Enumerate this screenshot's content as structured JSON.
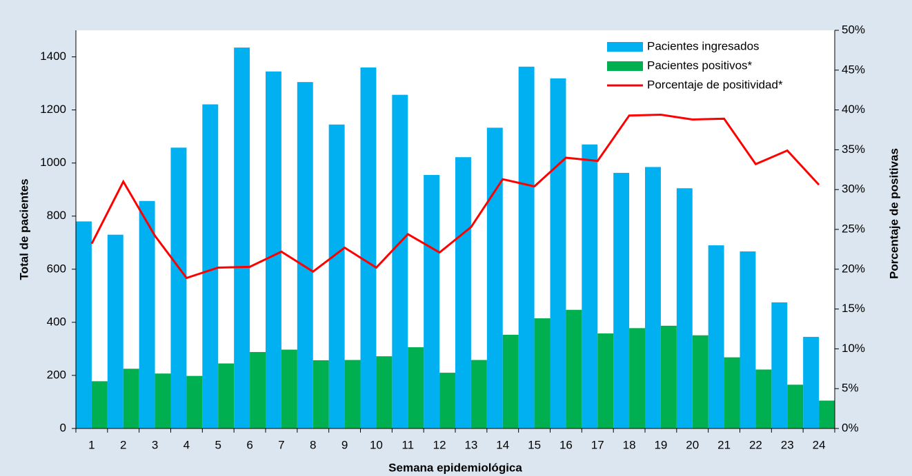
{
  "chart_data": {
    "type": "bar_line",
    "x_label": "Semana epidemiológica",
    "y_label": "Total de pacientes",
    "y2_label": "Porcentaje de positivas",
    "categories": [
      "1",
      "2",
      "3",
      "4",
      "5",
      "6",
      "7",
      "8",
      "9",
      "10",
      "11",
      "12",
      "13",
      "14",
      "15",
      "16",
      "17",
      "18",
      "19",
      "20",
      "21",
      "22",
      "23",
      "24"
    ],
    "series": [
      {
        "name": "Pacientes ingresados",
        "type": "bar",
        "color": "#00b0f0",
        "values": [
          780,
          730,
          857,
          1058,
          1221,
          1435,
          1345,
          1305,
          1145,
          1360,
          1257,
          955,
          1022,
          1133,
          1363,
          1319,
          1070,
          963,
          985,
          905,
          690,
          667,
          475,
          345
        ]
      },
      {
        "name": "Pacientes positivos*",
        "type": "bar",
        "color": "#00b050",
        "values": [
          178,
          225,
          207,
          198,
          245,
          288,
          297,
          257,
          258,
          272,
          306,
          210,
          258,
          353,
          415,
          447,
          358,
          378,
          387,
          351,
          268,
          222,
          165,
          105
        ]
      },
      {
        "name": "Porcentaje de positividad*",
        "type": "line",
        "axis": "y2",
        "color": "#ff0000",
        "values": [
          23.2,
          31.0,
          24.2,
          18.9,
          20.2,
          20.3,
          22.2,
          19.7,
          22.7,
          20.2,
          24.4,
          22.1,
          25.3,
          31.3,
          30.4,
          34.0,
          33.6,
          39.3,
          39.4,
          38.8,
          38.9,
          33.2,
          34.9,
          30.6
        ]
      }
    ],
    "ylim": [
      0,
      1500
    ],
    "yticks": [
      0,
      200,
      400,
      600,
      800,
      1000,
      1200,
      1400
    ],
    "y2lim": [
      0,
      50
    ],
    "y2ticks": [
      {
        "value": 0,
        "label": "0%"
      },
      {
        "value": 5,
        "label": "5%"
      },
      {
        "value": 10,
        "label": "10%"
      },
      {
        "value": 15,
        "label": "15%"
      },
      {
        "value": 20,
        "label": "20%"
      },
      {
        "value": 25,
        "label": "25%"
      },
      {
        "value": 30,
        "label": "30%"
      },
      {
        "value": 35,
        "label": "35%"
      },
      {
        "value": 40,
        "label": "40%"
      },
      {
        "value": 45,
        "label": "45%"
      },
      {
        "value": 50,
        "label": "50%"
      }
    ],
    "legend": "top-right"
  }
}
